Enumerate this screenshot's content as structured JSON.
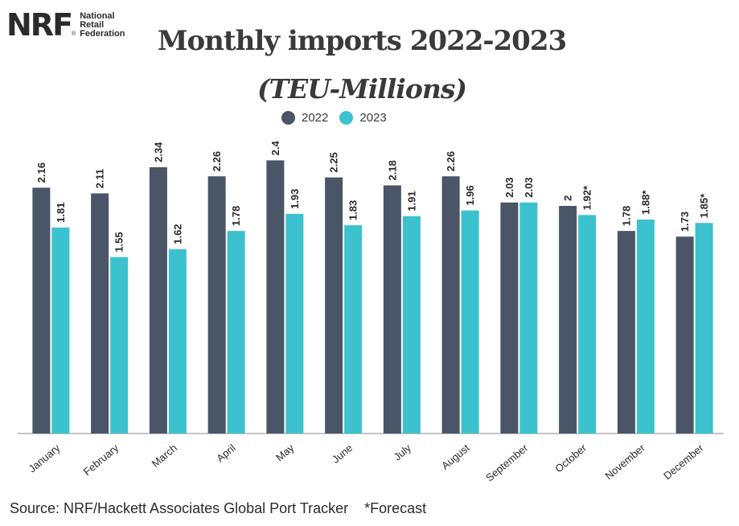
{
  "logo": {
    "mark": "NRF",
    "reg": "®",
    "name_lines": [
      "National",
      "Retail",
      "Federation"
    ]
  },
  "colors": {
    "series_2022": "#4a5568",
    "series_2023": "#3cc2ce",
    "text": "#2b2b2b",
    "axis": "#888888"
  },
  "source": "Source: NRF/Hackett Associates Global Port Tracker    *Forecast",
  "chart_data": {
    "type": "bar",
    "title": "Monthly imports 2022-2023",
    "subtitle": "(TEU-Millions)",
    "xlabel": "",
    "ylabel": "",
    "ylim": [
      0,
      2.6
    ],
    "grid": false,
    "legend_position": "top-center",
    "categories": [
      "January",
      "February",
      "March",
      "April",
      "May",
      "June",
      "July",
      "August",
      "September",
      "October",
      "November",
      "December"
    ],
    "series": [
      {
        "name": "2022",
        "values": [
          2.16,
          2.11,
          2.34,
          2.26,
          2.4,
          2.25,
          2.18,
          2.26,
          2.03,
          2,
          1.78,
          1.73
        ],
        "labels": [
          "2.16",
          "2.11",
          "2.34",
          "2.26",
          "2.4",
          "2.25",
          "2.18",
          "2.26",
          "2.03",
          "2",
          "1.78",
          "1.73"
        ]
      },
      {
        "name": "2023",
        "values": [
          1.81,
          1.55,
          1.62,
          1.78,
          1.93,
          1.83,
          1.91,
          1.96,
          2.03,
          1.92,
          1.88,
          1.85
        ],
        "labels": [
          "1.81",
          "1.55",
          "1.62",
          "1.78",
          "1.93",
          "1.83",
          "1.91",
          "1.96",
          "2.03",
          "1.92*",
          "1.88*",
          "1.85*"
        ]
      }
    ]
  }
}
